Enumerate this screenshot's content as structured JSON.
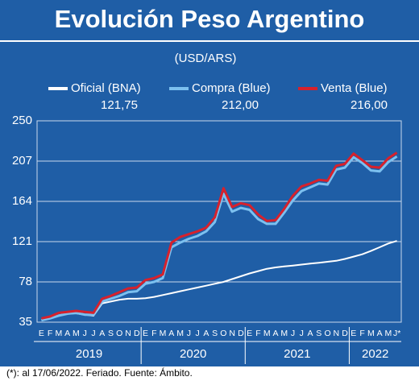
{
  "chart_data": {
    "type": "line",
    "title": "Evolución Peso Argentino",
    "subtitle": "(USD/ARS)",
    "footnote": "(*): al 17/06/2022. Feriado. Fuente: Ámbito.",
    "categories": [
      "E",
      "F",
      "M",
      "A",
      "M",
      "J",
      "J",
      "A",
      "S",
      "O",
      "N",
      "D",
      "E",
      "F",
      "M",
      "A",
      "M",
      "J",
      "J",
      "A",
      "S",
      "O",
      "N",
      "D",
      "E",
      "F",
      "M",
      "A",
      "M",
      "J",
      "J",
      "A",
      "S",
      "O",
      "N",
      "D",
      "E",
      "F",
      "M",
      "A",
      "M",
      "J*"
    ],
    "years": [
      "2019",
      "2020",
      "2021",
      "2022"
    ],
    "ylim": [
      35,
      250
    ],
    "yticks": [
      35,
      78,
      121,
      164,
      207,
      250
    ],
    "grid": true,
    "series": [
      {
        "name": "Oficial (BNA)",
        "label": "121,75",
        "color": "#ffffff",
        "values": [
          37.5,
          39,
          42,
          44,
          44.5,
          43,
          42,
          55,
          57,
          59,
          60,
          60,
          60.5,
          62,
          64,
          66,
          68,
          70,
          72,
          74,
          76,
          78,
          81,
          84,
          87,
          89.5,
          92,
          93.5,
          94.5,
          95.5,
          96.5,
          97.5,
          98.5,
          99.5,
          100.5,
          102.5,
          105,
          107.5,
          111,
          115,
          119,
          121.75
        ]
      },
      {
        "name": "Compra (Blue)",
        "label": "212,00",
        "color": "#7cc0ef",
        "values": [
          37,
          39,
          42,
          44,
          45,
          43,
          43,
          57,
          60,
          63,
          67,
          68,
          76,
          78,
          82,
          115,
          120,
          124,
          127,
          132,
          142,
          172,
          153,
          157,
          155,
          145,
          140,
          140,
          152,
          165,
          175,
          179,
          183,
          182,
          198,
          200,
          211,
          205,
          197,
          196,
          206,
          212
        ]
      },
      {
        "name": "Venta (Blue)",
        "label": "216,00",
        "color": "#d7212c",
        "values": [
          39,
          41,
          45,
          46,
          47,
          46,
          45,
          60,
          63,
          67,
          71,
          72,
          80,
          82,
          86,
          120,
          126,
          129,
          132,
          136,
          147,
          178,
          158,
          162,
          160,
          150,
          143,
          144,
          156,
          170,
          180,
          183,
          187,
          186,
          202,
          204,
          215,
          208,
          201,
          200,
          210,
          216
        ]
      }
    ]
  }
}
